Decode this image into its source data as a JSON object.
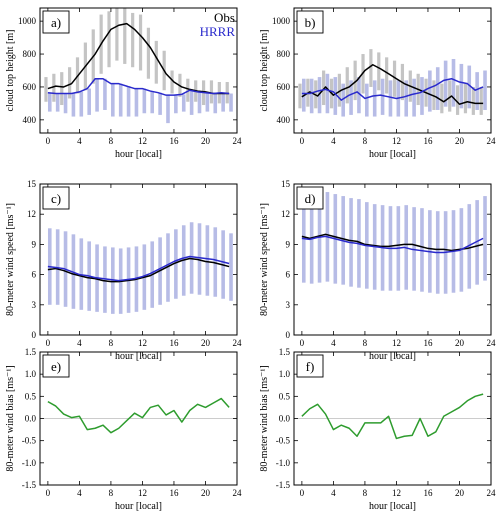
{
  "colors": {
    "obs": "#000000",
    "hrrr": "#2a2acc",
    "obs_range": "#c4c4c4",
    "hrrr_range": "#b7bce6",
    "bias": "#2e9c2e",
    "zero_line": "#cccccc"
  },
  "chart_data": [
    {
      "panel": "a)",
      "type": "line",
      "xlabel": "hour [local]",
      "ylabel": "cloud top height [m]",
      "xlim": [
        -1,
        24
      ],
      "ylim": [
        320,
        1080
      ],
      "xticks": [
        "0",
        "4",
        "8",
        "12",
        "16",
        "20",
        "24"
      ],
      "yticks": [
        "400",
        "600",
        "800",
        "1000"
      ],
      "legend": [
        "Obs",
        "HRRR"
      ],
      "legend_position": "top-right",
      "grid": false,
      "x": [
        0,
        1,
        2,
        3,
        4,
        5,
        6,
        7,
        8,
        9,
        10,
        11,
        12,
        13,
        14,
        15,
        16,
        17,
        18,
        19,
        20,
        21,
        22,
        23
      ],
      "series": [
        {
          "name": "Obs",
          "values": [
            590,
            605,
            600,
            620,
            680,
            740,
            800,
            880,
            950,
            975,
            985,
            950,
            900,
            840,
            760,
            680,
            630,
            600,
            585,
            575,
            570,
            560,
            560,
            560
          ]
        },
        {
          "name": "HRRR",
          "values": [
            565,
            560,
            560,
            560,
            570,
            590,
            650,
            650,
            620,
            620,
            605,
            590,
            590,
            575,
            565,
            550,
            550,
            555,
            580,
            570,
            565,
            560,
            565,
            560
          ]
        }
      ],
      "ranges": [
        {
          "series": "Obs",
          "low": [
            510,
            510,
            490,
            530,
            560,
            580,
            620,
            680,
            720,
            760,
            740,
            720,
            700,
            650,
            620,
            580,
            560,
            540,
            510,
            510,
            490,
            500,
            500,
            500
          ],
          "high": [
            660,
            680,
            690,
            720,
            780,
            870,
            950,
            1040,
            1060,
            1080,
            1080,
            1050,
            1040,
            960,
            880,
            820,
            700,
            680,
            650,
            640,
            640,
            640,
            630,
            630
          ]
        },
        {
          "series": "HRRR",
          "low": [
            450,
            450,
            440,
            420,
            420,
            430,
            450,
            460,
            420,
            420,
            420,
            420,
            440,
            440,
            430,
            380,
            440,
            450,
            430,
            440,
            450,
            440,
            450,
            450
          ]
        }
      ]
    },
    {
      "panel": "b)",
      "type": "line",
      "xlabel": "hour [local]",
      "ylabel": "cloud top height [m]",
      "xlim": [
        -1,
        24
      ],
      "ylim": [
        320,
        1080
      ],
      "xticks": [
        "0",
        "4",
        "8",
        "12",
        "16",
        "20",
        "24"
      ],
      "yticks": [
        "400",
        "600",
        "800",
        "1000"
      ],
      "grid": false,
      "x": [
        0,
        1,
        2,
        3,
        4,
        5,
        6,
        7,
        8,
        9,
        10,
        11,
        12,
        13,
        14,
        15,
        16,
        17,
        18,
        19,
        20,
        21,
        22,
        23
      ],
      "series": [
        {
          "name": "Obs",
          "values": [
            540,
            570,
            545,
            600,
            550,
            580,
            600,
            640,
            700,
            735,
            710,
            680,
            650,
            620,
            600,
            580,
            560,
            540,
            510,
            545,
            495,
            510,
            500,
            500
          ]
        },
        {
          "name": "HRRR",
          "values": [
            560,
            560,
            575,
            585,
            570,
            520,
            550,
            570,
            530,
            545,
            550,
            540,
            530,
            540,
            555,
            565,
            590,
            610,
            640,
            650,
            630,
            620,
            580,
            600
          ]
        }
      ],
      "ranges": [
        {
          "series": "Obs",
          "low": [
            470,
            480,
            470,
            490,
            470,
            480,
            500,
            520,
            560,
            600,
            580,
            560,
            540,
            520,
            510,
            490,
            480,
            460,
            440,
            450,
            430,
            440,
            430,
            430
          ],
          "high": [
            620,
            650,
            640,
            700,
            650,
            680,
            720,
            760,
            800,
            830,
            810,
            780,
            760,
            740,
            700,
            680,
            650,
            640,
            620,
            640,
            610,
            620,
            600,
            600
          ]
        },
        {
          "series": "HRRR",
          "low": [
            450,
            440,
            440,
            440,
            430,
            420,
            430,
            440,
            420,
            420,
            430,
            420,
            420,
            420,
            420,
            430,
            450,
            460,
            480,
            480,
            470,
            470,
            460,
            460
          ],
          "high": [
            650,
            650,
            660,
            680,
            660,
            620,
            640,
            660,
            620,
            640,
            650,
            640,
            640,
            640,
            650,
            660,
            700,
            720,
            760,
            770,
            740,
            730,
            690,
            700
          ]
        }
      ]
    },
    {
      "panel": "c)",
      "type": "line",
      "xlabel": "hour [local]",
      "ylabel": "80-meter wind speed [ms⁻¹]",
      "xlim": [
        -1,
        24
      ],
      "ylim": [
        0,
        15
      ],
      "xticks": [
        "0",
        "4",
        "8",
        "12",
        "16",
        "20",
        "24"
      ],
      "yticks": [
        "0",
        "3",
        "6",
        "9",
        "12",
        "15"
      ],
      "grid": false,
      "x": [
        0,
        1,
        2,
        3,
        4,
        5,
        6,
        7,
        8,
        9,
        10,
        11,
        12,
        13,
        14,
        15,
        16,
        17,
        18,
        19,
        20,
        21,
        22,
        23
      ],
      "series": [
        {
          "name": "Obs",
          "values": [
            6.5,
            6.6,
            6.4,
            6.1,
            5.9,
            5.7,
            5.6,
            5.4,
            5.3,
            5.3,
            5.4,
            5.5,
            5.7,
            5.9,
            6.3,
            6.7,
            7.1,
            7.4,
            7.6,
            7.5,
            7.3,
            7.2,
            7.0,
            6.8
          ]
        },
        {
          "name": "HRRR",
          "values": [
            6.8,
            6.7,
            6.6,
            6.3,
            6.0,
            5.9,
            5.7,
            5.6,
            5.5,
            5.4,
            5.5,
            5.6,
            5.8,
            6.1,
            6.5,
            6.9,
            7.3,
            7.6,
            7.8,
            7.7,
            7.6,
            7.5,
            7.3,
            7.1
          ]
        }
      ],
      "ranges": [
        {
          "series": "HRRR",
          "low": [
            3.0,
            3.0,
            2.8,
            2.6,
            2.5,
            2.4,
            2.3,
            2.2,
            2.1,
            2.1,
            2.2,
            2.3,
            2.5,
            2.7,
            3.0,
            3.3,
            3.6,
            3.9,
            4.1,
            4.0,
            3.9,
            3.8,
            3.6,
            3.4
          ],
          "high": [
            10.6,
            10.5,
            10.3,
            10.0,
            9.6,
            9.3,
            9.0,
            8.8,
            8.7,
            8.6,
            8.7,
            8.8,
            9.0,
            9.3,
            9.7,
            10.1,
            10.5,
            10.9,
            11.2,
            11.1,
            10.9,
            10.7,
            10.4,
            10.1
          ]
        }
      ]
    },
    {
      "panel": "d)",
      "type": "line",
      "xlabel": "hour [local]",
      "ylabel": "80-meter wind speed [ms⁻¹]",
      "xlim": [
        -1,
        24
      ],
      "ylim": [
        0,
        15
      ],
      "xticks": [
        "0",
        "4",
        "8",
        "12",
        "16",
        "20",
        "24"
      ],
      "yticks": [
        "0",
        "3",
        "6",
        "9",
        "12",
        "15"
      ],
      "grid": false,
      "x": [
        0,
        1,
        2,
        3,
        4,
        5,
        6,
        7,
        8,
        9,
        10,
        11,
        12,
        13,
        14,
        15,
        16,
        17,
        18,
        19,
        20,
        21,
        22,
        23
      ],
      "series": [
        {
          "name": "Obs",
          "values": [
            9.8,
            9.6,
            9.8,
            10.0,
            9.8,
            9.6,
            9.4,
            9.3,
            9.0,
            8.9,
            8.8,
            8.8,
            8.9,
            9.0,
            9.0,
            8.8,
            8.6,
            8.5,
            8.5,
            8.4,
            8.5,
            8.6,
            8.8,
            9.0
          ]
        },
        {
          "name": "HRRR",
          "values": [
            9.6,
            9.5,
            9.7,
            9.8,
            9.6,
            9.4,
            9.2,
            9.1,
            8.9,
            8.8,
            8.7,
            8.6,
            8.6,
            8.7,
            8.5,
            8.4,
            8.3,
            8.2,
            8.2,
            8.3,
            8.4,
            8.8,
            9.2,
            9.6
          ]
        }
      ],
      "ranges": [
        {
          "series": "HRRR",
          "low": [
            5.2,
            5.1,
            5.2,
            5.3,
            5.1,
            5.0,
            4.8,
            4.7,
            4.6,
            4.5,
            4.4,
            4.4,
            4.4,
            4.5,
            4.4,
            4.3,
            4.2,
            4.1,
            4.1,
            4.2,
            4.3,
            4.6,
            5.0,
            5.4
          ],
          "high": [
            14.0,
            13.9,
            14.1,
            14.2,
            14.0,
            13.8,
            13.6,
            13.5,
            13.2,
            13.0,
            12.9,
            12.8,
            12.8,
            12.9,
            12.7,
            12.6,
            12.4,
            12.3,
            12.3,
            12.4,
            12.6,
            13.0,
            13.4,
            13.8
          ]
        }
      ]
    },
    {
      "panel": "e)",
      "type": "line",
      "xlabel": "hour [local]",
      "ylabel": "80-meter wind bias [ms⁻¹]",
      "xlim": [
        -1,
        24
      ],
      "ylim": [
        -1.5,
        1.5
      ],
      "xticks": [
        "0",
        "4",
        "8",
        "12",
        "16",
        "20",
        "24"
      ],
      "yticks": [
        "-1.5",
        "-1.0",
        "-0.5",
        "0.0",
        "0.5",
        "1.0",
        "1.5"
      ],
      "grid": false,
      "x": [
        0,
        1,
        2,
        3,
        4,
        5,
        6,
        7,
        8,
        9,
        10,
        11,
        12,
        13,
        14,
        15,
        16,
        17,
        18,
        19,
        20,
        21,
        22,
        23
      ],
      "series": [
        {
          "name": "bias",
          "values": [
            0.38,
            0.28,
            0.1,
            0.02,
            0.05,
            -0.25,
            -0.22,
            -0.15,
            -0.32,
            -0.22,
            -0.05,
            0.12,
            0.02,
            0.25,
            0.3,
            0.08,
            0.18,
            -0.08,
            0.18,
            0.32,
            0.25,
            0.35,
            0.45,
            0.25
          ]
        }
      ],
      "zero_line": 0
    },
    {
      "panel": "f)",
      "type": "line",
      "xlabel": "hour [local]",
      "ylabel": "80-meter wind bias [ms⁻¹]",
      "xlim": [
        -1,
        24
      ],
      "ylim": [
        -1.5,
        1.5
      ],
      "xticks": [
        "0",
        "4",
        "8",
        "12",
        "16",
        "20",
        "24"
      ],
      "yticks": [
        "-1.5",
        "-1.0",
        "-0.5",
        "0.0",
        "0.5",
        "1.0",
        "1.5"
      ],
      "grid": false,
      "x": [
        0,
        1,
        2,
        3,
        4,
        5,
        6,
        7,
        8,
        9,
        10,
        11,
        12,
        13,
        14,
        15,
        16,
        17,
        18,
        19,
        20,
        21,
        22,
        23
      ],
      "series": [
        {
          "name": "bias",
          "values": [
            0.05,
            0.22,
            0.32,
            0.1,
            -0.25,
            -0.15,
            -0.22,
            -0.4,
            -0.1,
            -0.1,
            -0.1,
            0.05,
            -0.45,
            -0.4,
            -0.38,
            0.0,
            -0.4,
            -0.3,
            0.05,
            0.15,
            0.25,
            0.4,
            0.5,
            0.55
          ]
        }
      ],
      "zero_line": 0
    }
  ]
}
